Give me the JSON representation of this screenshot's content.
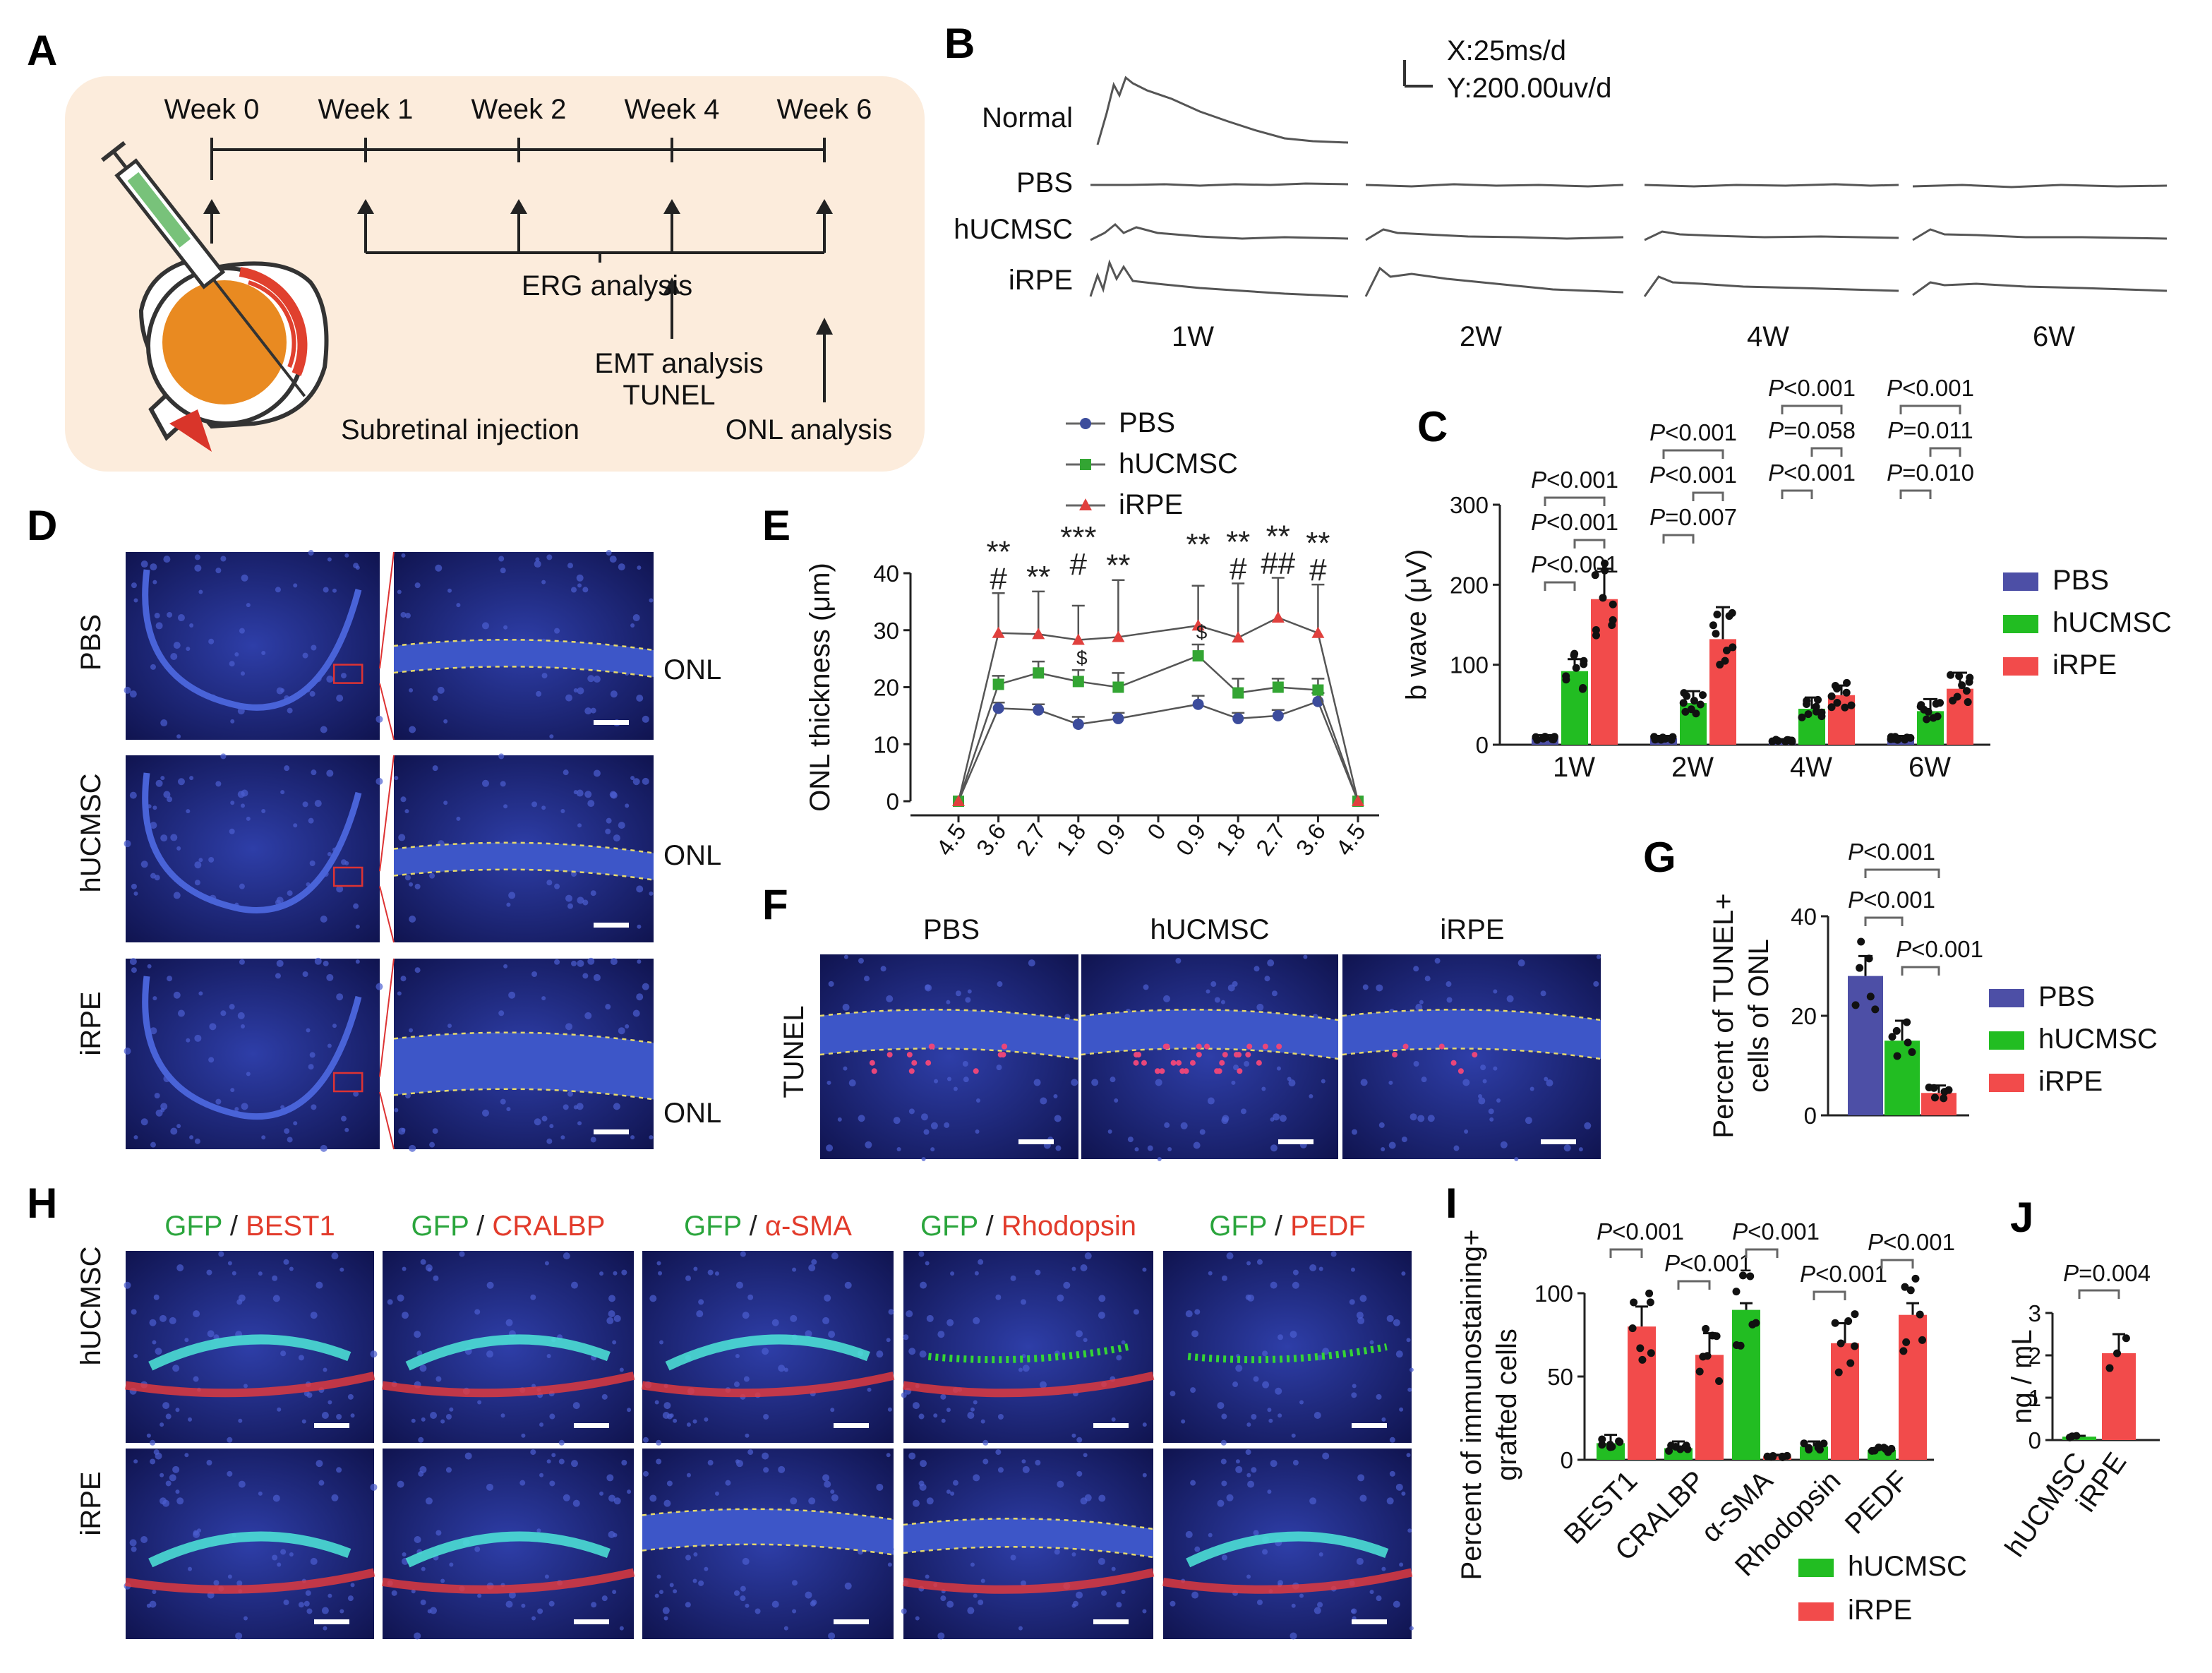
{
  "panel_letters": [
    "A",
    "B",
    "C",
    "D",
    "E",
    "F",
    "G",
    "H",
    "I",
    "J"
  ],
  "panel_a": {
    "timeline": [
      "Week 0",
      "Week 1",
      "Week 2",
      "Week 4",
      "Week 6"
    ],
    "erg_label": "ERG analysis",
    "emt_label": "EMT analysis",
    "tunel_label": "TUNEL",
    "onl_label": "ONL analysis",
    "injection_label": "Subretinal injection",
    "colors": {
      "background": "#fcecdc",
      "lens": "#e98a21",
      "retina": "#e0402e"
    }
  },
  "panel_b": {
    "scale_x": "X:25ms/d",
    "scale_y": "Y:200.00uv/d",
    "row_labels": [
      "Normal",
      "PBS",
      "hUCMSC",
      "iRPE"
    ],
    "week_labels": [
      "1W",
      "2W",
      "4W",
      "6W"
    ]
  },
  "panel_c": {
    "chart_data": {
      "type": "bar",
      "ylabel": "b wave (μV)",
      "ylim": [
        0,
        300
      ],
      "yticks": [
        "0",
        "100",
        "200",
        "300"
      ],
      "categories": [
        "1W",
        "2W",
        "4W",
        "6W"
      ],
      "series": [
        {
          "name": "PBS",
          "color": "#4d4fa6",
          "values": [
            8,
            8,
            5,
            8
          ],
          "err": [
            4,
            3,
            2,
            3
          ]
        },
        {
          "name": "hUCMSC",
          "color": "#22bd22",
          "values": [
            92,
            52,
            45,
            42
          ],
          "err": [
            15,
            15,
            14,
            15
          ]
        },
        {
          "name": "iRPE",
          "color": "#f24b4b",
          "values": [
            182,
            132,
            62,
            70
          ],
          "err": [
            38,
            40,
            12,
            20
          ]
        }
      ],
      "pvalues": [
        [
          "P<0.001",
          "P<0.001",
          "P<0.001"
        ],
        [
          "P<0.001",
          "P<0.001",
          "P=0.007"
        ],
        [
          "P<0.001",
          "P=0.058",
          "P<0.001"
        ],
        [
          "P<0.001",
          "P=0.011",
          "P=0.010"
        ]
      ]
    }
  },
  "panel_d": {
    "row_labels": [
      "PBS",
      "hUCMSC",
      "iRPE"
    ],
    "onl_label": "ONL"
  },
  "panel_e": {
    "chart_data": {
      "type": "line",
      "ylabel": "ONL thickness (μm)",
      "ylim": [
        0,
        40
      ],
      "yticks": [
        "0",
        "10",
        "20",
        "30",
        "40"
      ],
      "x": [
        "4.5",
        "3.6",
        "2.7",
        "1.8",
        "0.9",
        "0",
        "0.9",
        "1.8",
        "2.7",
        "3.6",
        "4.5"
      ],
      "series": [
        {
          "name": "PBS",
          "color": "#3c4c9c",
          "values": [
            0,
            16.3,
            16,
            13.5,
            14.5,
            null,
            17,
            14.5,
            15,
            17.5,
            0
          ],
          "err": [
            0,
            1,
            1,
            1.3,
            1,
            null,
            1.5,
            1,
            1,
            1.5,
            0
          ]
        },
        {
          "name": "hUCMSC",
          "color": "#33a533",
          "values": [
            0,
            20.5,
            22.5,
            21,
            20,
            null,
            25.5,
            19,
            20,
            19.5,
            0
          ],
          "err": [
            0,
            1.5,
            2,
            2,
            2.5,
            null,
            2,
            2.5,
            1.5,
            2,
            0
          ]
        },
        {
          "name": "iRPE",
          "color": "#e0403d",
          "values": [
            0,
            29.5,
            29.3,
            28.3,
            28.8,
            null,
            30.8,
            28.7,
            32.2,
            29.5,
            0
          ],
          "err": [
            0,
            7,
            7.5,
            6,
            10,
            null,
            7,
            9.5,
            7,
            8.5,
            0
          ]
        }
      ],
      "annotations": [
        {
          "x": 1,
          "lines": [
            "**",
            "#"
          ]
        },
        {
          "x": 2,
          "lines": [
            "**"
          ]
        },
        {
          "x": 3,
          "lines": [
            "***",
            "#",
            "$"
          ]
        },
        {
          "x": 4,
          "lines": [
            "**"
          ]
        },
        {
          "x": 6,
          "lines": [
            "**",
            "$"
          ]
        },
        {
          "x": 7,
          "lines": [
            "**",
            "#"
          ]
        },
        {
          "x": 8,
          "lines": [
            "**",
            "##"
          ]
        },
        {
          "x": 9,
          "lines": [
            "**",
            "#"
          ]
        }
      ]
    }
  },
  "panel_f": {
    "group_labels": [
      "PBS",
      "hUCMSC",
      "iRPE"
    ],
    "row_label": "TUNEL"
  },
  "panel_g": {
    "chart_data": {
      "type": "bar",
      "ylabel_lines": [
        "Percent of TUNEL+",
        "cells of ONL"
      ],
      "ylim": [
        0,
        40
      ],
      "yticks": [
        "0",
        "20",
        "40"
      ],
      "categories": [
        "PBS",
        "hUCMSC",
        "iRPE"
      ],
      "series": [
        {
          "name": "PBS",
          "color": "#4d4fa6",
          "value": 28,
          "err": 4
        },
        {
          "name": "hUCMSC",
          "color": "#22bd22",
          "value": 15,
          "err": 4
        },
        {
          "name": "iRPE",
          "color": "#f24b4b",
          "value": 4.5,
          "err": 1.5
        }
      ],
      "pvalues": [
        "P<0.001",
        "P<0.001",
        "P<0.001"
      ]
    }
  },
  "panel_h": {
    "columns": [
      {
        "left": "GFP",
        "sep": " / ",
        "right": "BEST1"
      },
      {
        "left": "GFP",
        "sep": " / ",
        "right": "CRALBP"
      },
      {
        "left": "GFP",
        "sep": " / ",
        "right": "α-SMA"
      },
      {
        "left": "GFP",
        "sep": " / ",
        "right": "Rhodopsin"
      },
      {
        "left": "GFP",
        "sep": " / ",
        "right": "PEDF"
      }
    ],
    "row_labels": [
      "hUCMSC",
      "iRPE"
    ]
  },
  "panel_i": {
    "chart_data": {
      "type": "bar",
      "ylabel_lines": [
        "Percent of immunostaining+",
        "grafted cells"
      ],
      "ylim": [
        0,
        100
      ],
      "yticks": [
        "0",
        "50",
        "100"
      ],
      "categories": [
        "BEST1",
        "CRALBP",
        "α-SMA",
        "Rhodopsin",
        "PEDF"
      ],
      "series": [
        {
          "name": "hUCMSC",
          "color": "#22bd22",
          "values": [
            10,
            7,
            90,
            8,
            6
          ],
          "err": [
            5,
            4,
            4,
            3,
            2
          ]
        },
        {
          "name": "iRPE",
          "color": "#f24b4b",
          "values": [
            80,
            63,
            2,
            70,
            87
          ],
          "err": [
            12,
            13,
            1,
            12,
            7
          ]
        }
      ],
      "pvalues": [
        "P<0.001",
        "P<0.001",
        "P<0.001",
        "P<0.001",
        "P<0.001"
      ]
    }
  },
  "panel_j": {
    "chart_data": {
      "type": "bar",
      "ylabel": "ng / mL",
      "ylim": [
        0,
        3
      ],
      "yticks": [
        "0",
        "1",
        "2",
        "3"
      ],
      "categories": [
        "hUCMSC",
        "iRPE"
      ],
      "series": [
        {
          "name": "hUCMSC",
          "color": "#22bd22",
          "value": 0.08,
          "err": 0.02
        },
        {
          "name": "iRPE",
          "color": "#f24b4b",
          "value": 2.05,
          "err": 0.45
        }
      ],
      "pvalue": "P=0.004"
    }
  }
}
